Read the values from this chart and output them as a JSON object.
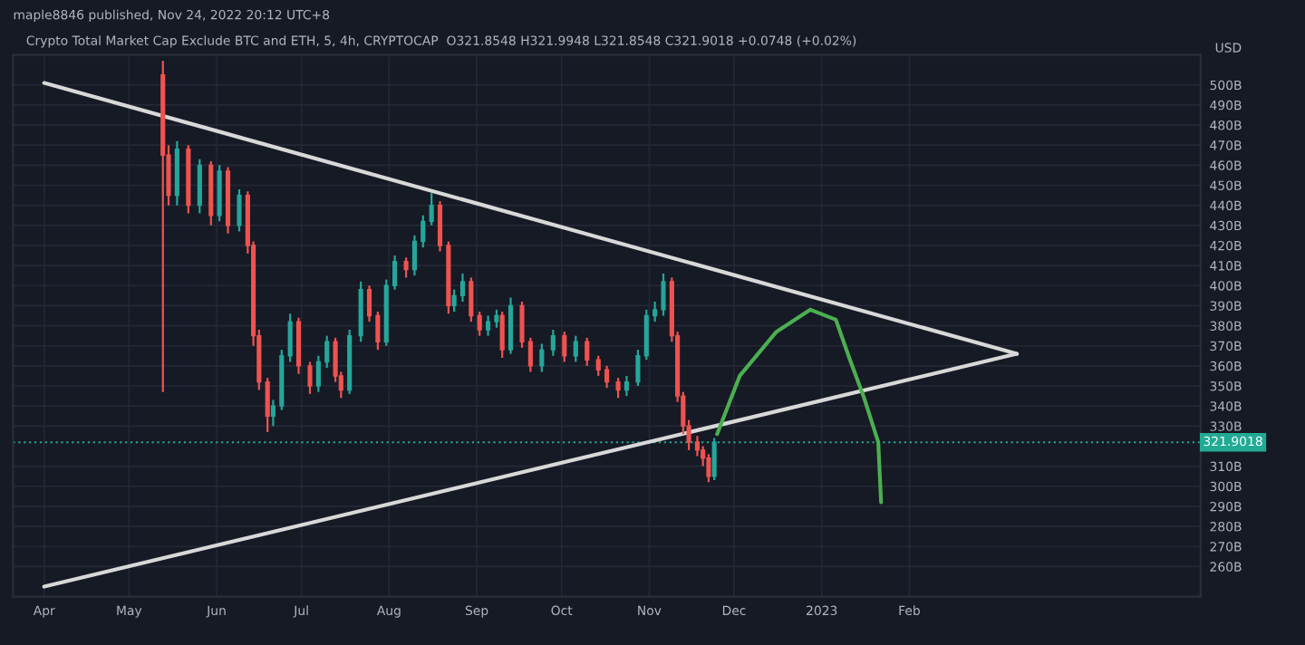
{
  "chart_data": {
    "type": "candlestick",
    "annotations": [
      "maple8846 published, Nov 24, 2022 20:12 UTC+8",
      "Crypto Total Market Cap Exclude BTC and ETH, 5, 4h, CRYPTOCAP  O321.8548 H321.9948 L321.8548 C321.9018 +0.0748 (+0.02%)"
    ],
    "ylabel": "USD",
    "x": [
      "2022-05-13",
      "2022-05-15",
      "2022-05-18",
      "2022-05-22",
      "2022-05-26",
      "2022-05-30",
      "2022-06-02",
      "2022-06-05",
      "2022-06-09",
      "2022-06-12",
      "2022-06-14",
      "2022-06-16",
      "2022-06-19",
      "2022-06-21",
      "2022-06-24",
      "2022-06-27",
      "2022-06-30",
      "2022-07-04",
      "2022-07-07",
      "2022-07-10",
      "2022-07-13",
      "2022-07-15",
      "2022-07-18",
      "2022-07-22",
      "2022-07-25",
      "2022-07-28",
      "2022-07-31",
      "2022-08-03",
      "2022-08-07",
      "2022-08-10",
      "2022-08-13",
      "2022-08-16",
      "2022-08-19",
      "2022-08-22",
      "2022-08-24",
      "2022-08-27",
      "2022-08-30",
      "2022-09-02",
      "2022-09-05",
      "2022-09-08",
      "2022-09-10",
      "2022-09-13",
      "2022-09-17",
      "2022-09-20",
      "2022-09-24",
      "2022-09-28",
      "2022-10-02",
      "2022-10-06",
      "2022-10-10",
      "2022-10-14",
      "2022-10-17",
      "2022-10-21",
      "2022-10-24",
      "2022-10-28",
      "2022-10-31",
      "2022-11-03",
      "2022-11-06",
      "2022-11-09",
      "2022-11-11",
      "2022-11-13",
      "2022-11-15",
      "2022-11-18",
      "2022-11-20",
      "2022-11-22",
      "2022-11-24"
    ],
    "ohlc": [
      [
        505,
        512,
        347,
        465
      ],
      [
        465,
        470,
        440,
        445
      ],
      [
        445,
        472,
        440,
        468
      ],
      [
        468,
        470,
        436,
        440
      ],
      [
        440,
        463,
        436,
        460
      ],
      [
        460,
        462,
        430,
        435
      ],
      [
        435,
        460,
        432,
        457
      ],
      [
        457,
        459,
        426,
        430
      ],
      [
        430,
        448,
        427,
        445
      ],
      [
        445,
        447,
        416,
        420
      ],
      [
        420,
        422,
        370,
        375
      ],
      [
        375,
        378,
        348,
        352
      ],
      [
        352,
        354,
        327,
        335
      ],
      [
        335,
        343,
        330,
        340
      ],
      [
        340,
        368,
        338,
        365
      ],
      [
        365,
        386,
        362,
        382
      ],
      [
        382,
        384,
        356,
        360
      ],
      [
        360,
        362,
        346,
        350
      ],
      [
        350,
        365,
        347,
        362
      ],
      [
        362,
        375,
        359,
        372
      ],
      [
        372,
        374,
        352,
        355
      ],
      [
        355,
        357,
        344,
        348
      ],
      [
        348,
        378,
        346,
        375
      ],
      [
        375,
        402,
        372,
        398
      ],
      [
        398,
        400,
        382,
        385
      ],
      [
        385,
        387,
        368,
        372
      ],
      [
        372,
        403,
        370,
        400
      ],
      [
        400,
        415,
        398,
        412
      ],
      [
        412,
        414,
        404,
        408
      ],
      [
        408,
        425,
        405,
        422
      ],
      [
        422,
        435,
        419,
        432
      ],
      [
        432,
        446,
        430,
        440
      ],
      [
        440,
        442,
        417,
        420
      ],
      [
        420,
        422,
        386,
        390
      ],
      [
        390,
        398,
        387,
        395
      ],
      [
        395,
        406,
        392,
        402
      ],
      [
        402,
        404,
        382,
        385
      ],
      [
        385,
        387,
        375,
        378
      ],
      [
        378,
        385,
        375,
        382
      ],
      [
        382,
        388,
        379,
        385
      ],
      [
        385,
        387,
        364,
        368
      ],
      [
        368,
        394,
        366,
        390
      ],
      [
        390,
        392,
        369,
        372
      ],
      [
        372,
        374,
        357,
        360
      ],
      [
        360,
        371,
        357,
        368
      ],
      [
        368,
        378,
        365,
        375
      ],
      [
        375,
        377,
        362,
        365
      ],
      [
        365,
        375,
        362,
        372
      ],
      [
        372,
        374,
        360,
        363
      ],
      [
        363,
        365,
        355,
        358
      ],
      [
        358,
        360,
        349,
        352
      ],
      [
        352,
        354,
        344,
        348
      ],
      [
        348,
        355,
        345,
        352
      ],
      [
        352,
        368,
        350,
        365
      ],
      [
        365,
        388,
        363,
        385
      ],
      [
        385,
        392,
        382,
        388
      ],
      [
        388,
        406,
        385,
        402
      ],
      [
        402,
        404,
        372,
        375
      ],
      [
        375,
        377,
        342,
        345
      ],
      [
        345,
        347,
        326,
        330
      ],
      [
        330,
        333,
        318,
        322
      ],
      [
        322,
        325,
        315,
        318
      ],
      [
        318,
        320,
        310,
        314
      ],
      [
        314,
        316,
        302,
        305
      ],
      [
        305,
        324,
        303,
        321.9018
      ]
    ],
    "series": [
      {
        "type": "line",
        "color": "#d8d8d8",
        "x": [
          "2022-04-01",
          "2023-03-11"
        ],
        "values": [
          501,
          366
        ]
      },
      {
        "type": "line",
        "color": "#d8d8d8",
        "x": [
          "2022-04-01",
          "2023-03-11"
        ],
        "values": [
          250,
          366
        ]
      },
      {
        "type": "line",
        "color": "#4caf50",
        "x": [
          "2022-11-25",
          "2022-12-03",
          "2022-12-16",
          "2022-12-28",
          "2023-01-06",
          "2023-01-11",
          "2023-01-16",
          "2023-01-21",
          "2023-01-22"
        ],
        "values": [
          326,
          355,
          377,
          388,
          383,
          363,
          344,
          322,
          292
        ]
      }
    ],
    "ref_lines": [
      {
        "axis": "y",
        "value": 321.9018,
        "label": "321.9018",
        "color": "#22ab94",
        "line_style": "dotted"
      }
    ],
    "xlim": [
      "2022-03-21",
      "2023-05-15"
    ],
    "xticks": [
      {
        "value": "2022-04-01",
        "label": "Apr"
      },
      {
        "value": "2022-05-01",
        "label": "May"
      },
      {
        "value": "2022-06-01",
        "label": "Jun"
      },
      {
        "value": "2022-07-01",
        "label": "Jul"
      },
      {
        "value": "2022-08-01",
        "label": "Aug"
      },
      {
        "value": "2022-09-01",
        "label": "Sep"
      },
      {
        "value": "2022-10-01",
        "label": "Oct"
      },
      {
        "value": "2022-11-01",
        "label": "Nov"
      },
      {
        "value": "2022-12-01",
        "label": "Dec"
      },
      {
        "value": "2023-01-01",
        "label": "2023"
      },
      {
        "value": "2023-02-01",
        "label": "Feb"
      }
    ],
    "ylim": [
      245,
      515
    ],
    "yticks": [
      {
        "value": 260,
        "label": "260B"
      },
      {
        "value": 270,
        "label": "270B"
      },
      {
        "value": 280,
        "label": "280B"
      },
      {
        "value": 290,
        "label": "290B"
      },
      {
        "value": 300,
        "label": "300B"
      },
      {
        "value": 310,
        "label": "310B"
      },
      {
        "value": 330,
        "label": "330B"
      },
      {
        "value": 340,
        "label": "340B"
      },
      {
        "value": 350,
        "label": "350B"
      },
      {
        "value": 360,
        "label": "360B"
      },
      {
        "value": 370,
        "label": "370B"
      },
      {
        "value": 380,
        "label": "380B"
      },
      {
        "value": 390,
        "label": "390B"
      },
      {
        "value": 400,
        "label": "400B"
      },
      {
        "value": 410,
        "label": "410B"
      },
      {
        "value": 420,
        "label": "420B"
      },
      {
        "value": 430,
        "label": "430B"
      },
      {
        "value": 440,
        "label": "440B"
      },
      {
        "value": 450,
        "label": "450B"
      },
      {
        "value": 460,
        "label": "460B"
      },
      {
        "value": 470,
        "label": "470B"
      },
      {
        "value": 480,
        "label": "480B"
      },
      {
        "value": 490,
        "label": "490B"
      },
      {
        "value": 500,
        "label": "500B"
      }
    ],
    "grid": true,
    "legend": false
  }
}
